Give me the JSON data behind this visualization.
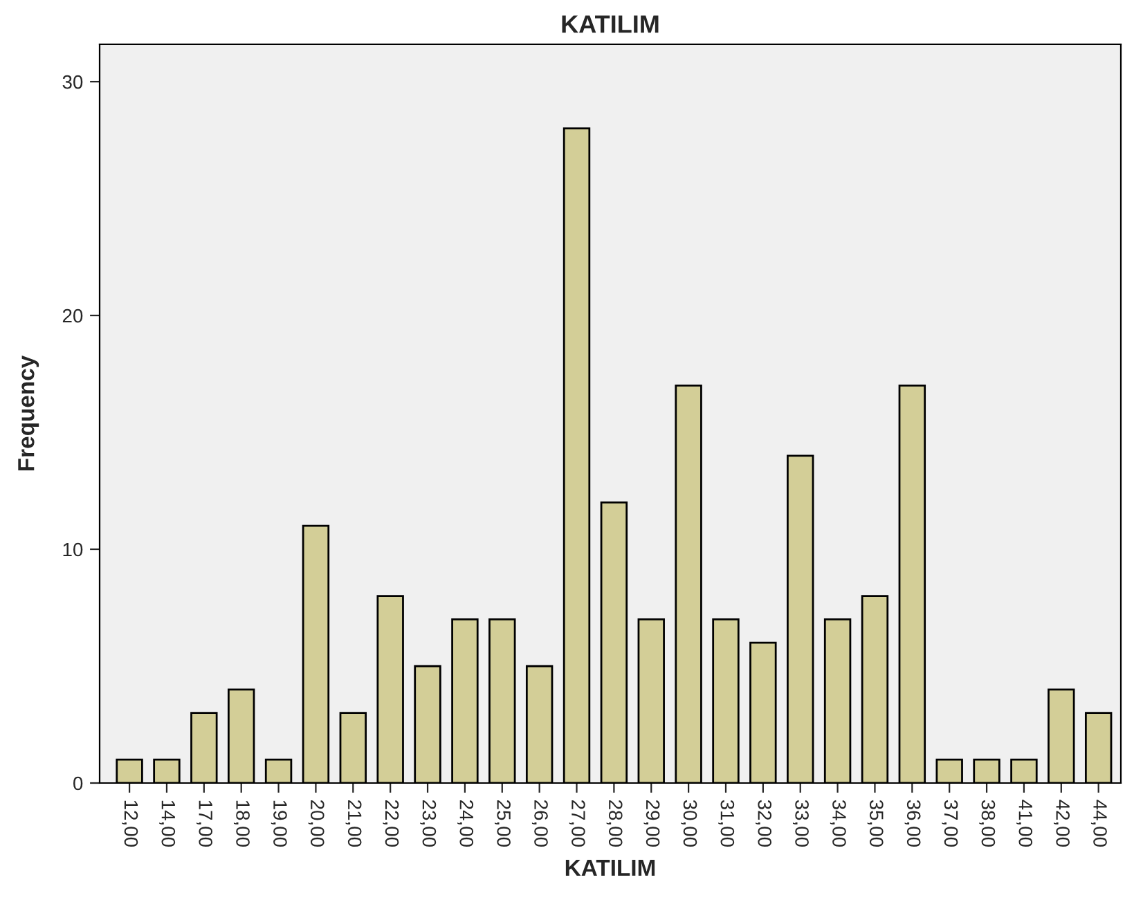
{
  "chart_data": {
    "type": "bar",
    "title": "KATILIM",
    "xlabel": "KATILIM",
    "ylabel": "Frequency",
    "categories": [
      "12,00",
      "14,00",
      "17,00",
      "18,00",
      "19,00",
      "20,00",
      "21,00",
      "22,00",
      "23,00",
      "24,00",
      "25,00",
      "26,00",
      "27,00",
      "28,00",
      "29,00",
      "30,00",
      "31,00",
      "32,00",
      "33,00",
      "34,00",
      "35,00",
      "36,00",
      "37,00",
      "38,00",
      "41,00",
      "42,00",
      "44,00"
    ],
    "values": [
      1,
      1,
      3,
      4,
      1,
      11,
      3,
      8,
      5,
      7,
      7,
      5,
      28,
      12,
      7,
      17,
      7,
      6,
      14,
      7,
      8,
      17,
      1,
      1,
      1,
      4,
      3
    ],
    "color": "#d3ce97",
    "ylim": [
      0,
      31.6
    ],
    "yticks": [
      0,
      10,
      20,
      30
    ],
    "grid": false,
    "legend": false
  }
}
